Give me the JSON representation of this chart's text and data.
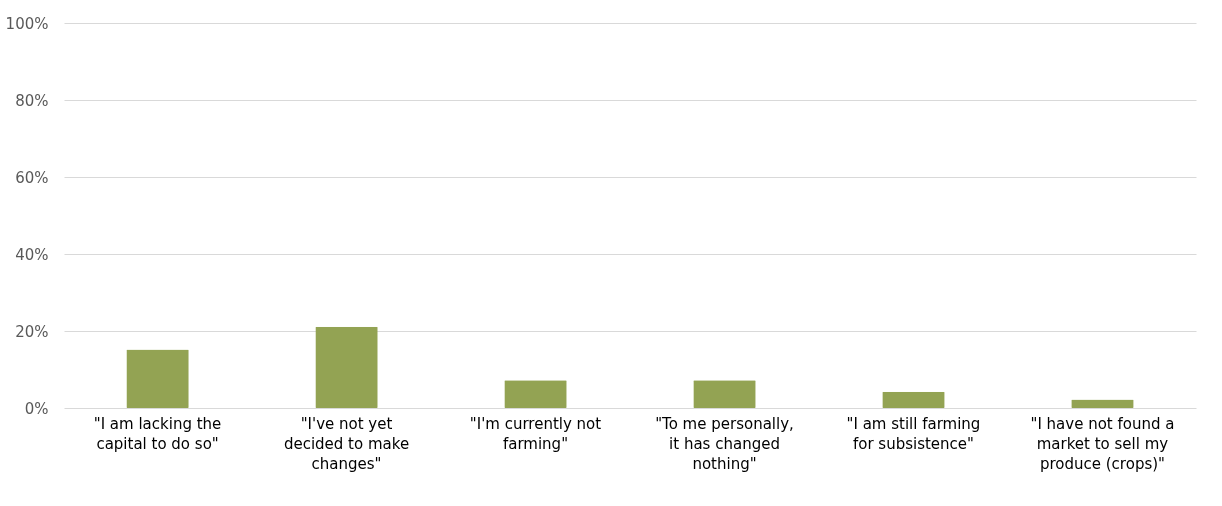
{
  "chart_data": {
    "type": "bar",
    "categories": [
      "\"I am lacking the capital to do so\"",
      "\"I've not yet decided to make changes\"",
      "\"I'm currently not farming\"",
      "\"To me personally, it has changed nothing\"",
      "\"I am still farming for subsistence\"",
      "\"I have not found a market to sell my produce (crops)\""
    ],
    "values": [
      15.2,
      21.1,
      7.2,
      7.2,
      4.2,
      2.2
    ],
    "color": "#93a353",
    "ylim": [
      0,
      100
    ],
    "yticks": [
      {
        "value": 0,
        "label": "0%"
      },
      {
        "value": 20,
        "label": "20%"
      },
      {
        "value": 40,
        "label": "40%"
      },
      {
        "value": 60,
        "label": "60%"
      },
      {
        "value": 80,
        "label": "80%"
      },
      {
        "value": 100,
        "label": "100%"
      }
    ],
    "grid": "y"
  }
}
